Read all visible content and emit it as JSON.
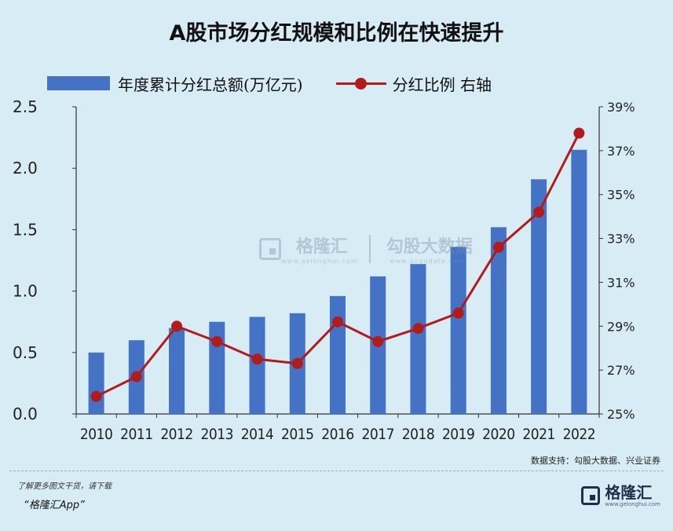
{
  "page": {
    "title": "A股市场分红规模和比例在快速提升",
    "source": "数据支持：勾股大数据、兴业证券",
    "footer_line1": "了解更多图文干货，请下载",
    "footer_line2": "“格隆汇App”",
    "watermark_brand": "格隆汇",
    "watermark_brand_url": "www.gelonghui.com",
    "watermark_data": "勾股大数据",
    "watermark_data_url": "www.gogudata.com",
    "footer_brand": "格隆汇",
    "footer_brand_url": "www.gelonghui.com"
  },
  "chart_data": {
    "type": "bar",
    "title": "A股市场分红规模和比例在快速提升",
    "categories": [
      "2010",
      "2011",
      "2012",
      "2013",
      "2014",
      "2015",
      "2016",
      "2017",
      "2018",
      "2019",
      "2020",
      "2021",
      "2022"
    ],
    "series": [
      {
        "name": "年度累计分红总额(万亿元)",
        "type": "bar",
        "axis": "left",
        "color": "#4472c4",
        "values": [
          0.5,
          0.6,
          0.7,
          0.75,
          0.79,
          0.82,
          0.96,
          1.12,
          1.22,
          1.36,
          1.52,
          1.91,
          2.15
        ]
      },
      {
        "name": "分红比例 右轴",
        "type": "line",
        "axis": "right",
        "color": "#b01c1c",
        "values": [
          25.8,
          26.7,
          29.0,
          28.3,
          27.5,
          27.3,
          29.2,
          28.3,
          28.9,
          29.6,
          32.6,
          34.2,
          37.8
        ]
      }
    ],
    "y_left": {
      "range": [
        0,
        2.5
      ],
      "ticks": [
        "0.0",
        "0.5",
        "1.0",
        "1.5",
        "2.0",
        "2.5"
      ]
    },
    "y_right": {
      "range": [
        25,
        39
      ],
      "ticks": [
        "25%",
        "27%",
        "29%",
        "31%",
        "33%",
        "35%",
        "37%",
        "39%"
      ]
    },
    "grid": false,
    "legend_position": "top"
  }
}
